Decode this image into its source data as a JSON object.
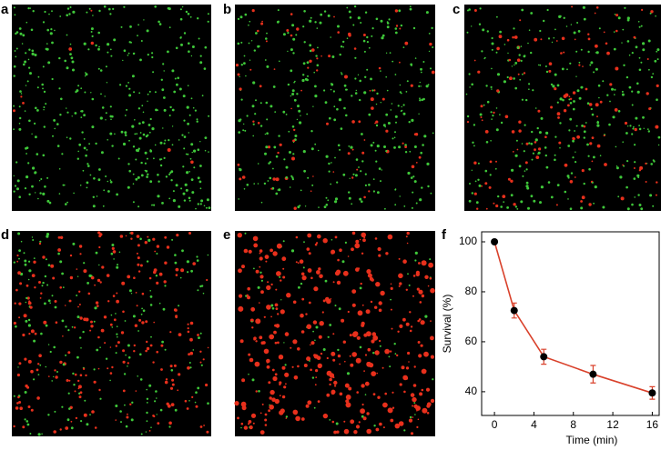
{
  "panel_labels": [
    "a",
    "b",
    "c",
    "d",
    "e"
  ],
  "chart_data": {
    "type": "line",
    "panel_label": "f",
    "x": [
      0,
      2,
      5,
      10,
      16
    ],
    "values": [
      100,
      72.5,
      54,
      47,
      39.5
    ],
    "errors": [
      0,
      3,
      3,
      3.5,
      2.5
    ],
    "color": "#d9412b",
    "marker_color": "#000000",
    "xlabel": "Time (min)",
    "ylabel": "Survival (%)",
    "xlim": [
      -1.3,
      16.7
    ],
    "ylim": [
      30.5,
      104
    ],
    "xticks": [
      0,
      4,
      8,
      12,
      16
    ],
    "yticks": [
      40,
      60,
      80,
      100
    ]
  }
}
